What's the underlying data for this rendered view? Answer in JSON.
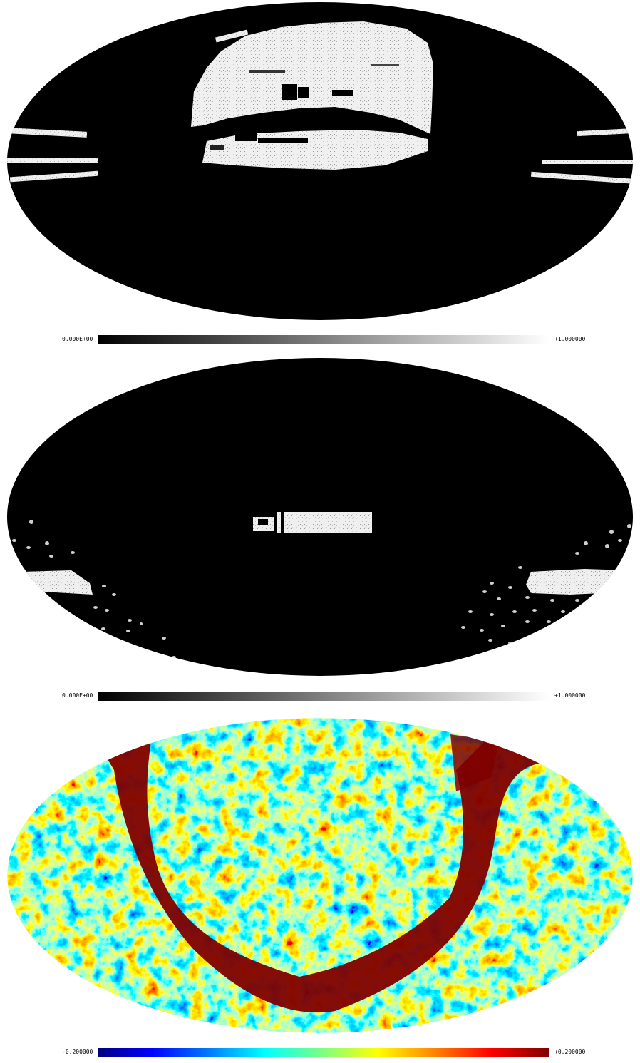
{
  "panels": [
    {
      "colormap": "grayscale",
      "colorbar": {
        "min_label": "0.000E+00",
        "max_label": "+1.000000"
      }
    },
    {
      "colormap": "grayscale",
      "colorbar": {
        "min_label": "0.000E+00",
        "max_label": "+1.000000"
      }
    },
    {
      "colormap": "jet",
      "colorbar": {
        "min_label": "-0.200000",
        "max_label": "+0.200000"
      }
    }
  ],
  "colors": {
    "background": "#ffffff",
    "map_fill": "#000000",
    "mask_white": "#f2f2f2",
    "jet_low": "#00007f",
    "jet_high": "#7f0000"
  }
}
